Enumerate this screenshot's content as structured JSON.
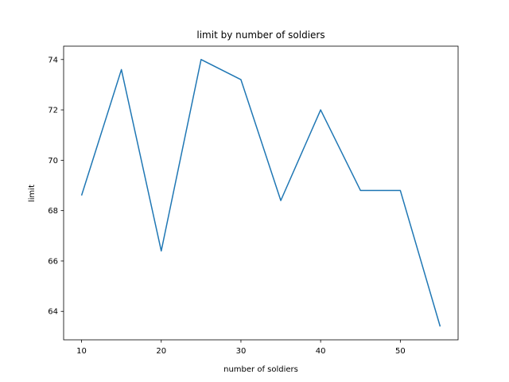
{
  "chart_data": {
    "type": "line",
    "title": "limit by number of soldiers",
    "xlabel": "number of soldiers",
    "ylabel": "limit",
    "xlim": [
      7.75,
      57.25
    ],
    "ylim": [
      62.87,
      74.53
    ],
    "xticks": [
      10,
      20,
      30,
      40,
      50
    ],
    "yticks": [
      64,
      66,
      68,
      70,
      72,
      74
    ],
    "grid": false,
    "series": [
      {
        "color": "#1f77b4",
        "x": [
          10,
          15,
          20,
          25,
          30,
          35,
          40,
          45,
          50,
          55
        ],
        "y": [
          68.6,
          73.6,
          66.4,
          74.0,
          73.2,
          68.4,
          72.0,
          68.8,
          68.8,
          63.4
        ]
      }
    ]
  }
}
